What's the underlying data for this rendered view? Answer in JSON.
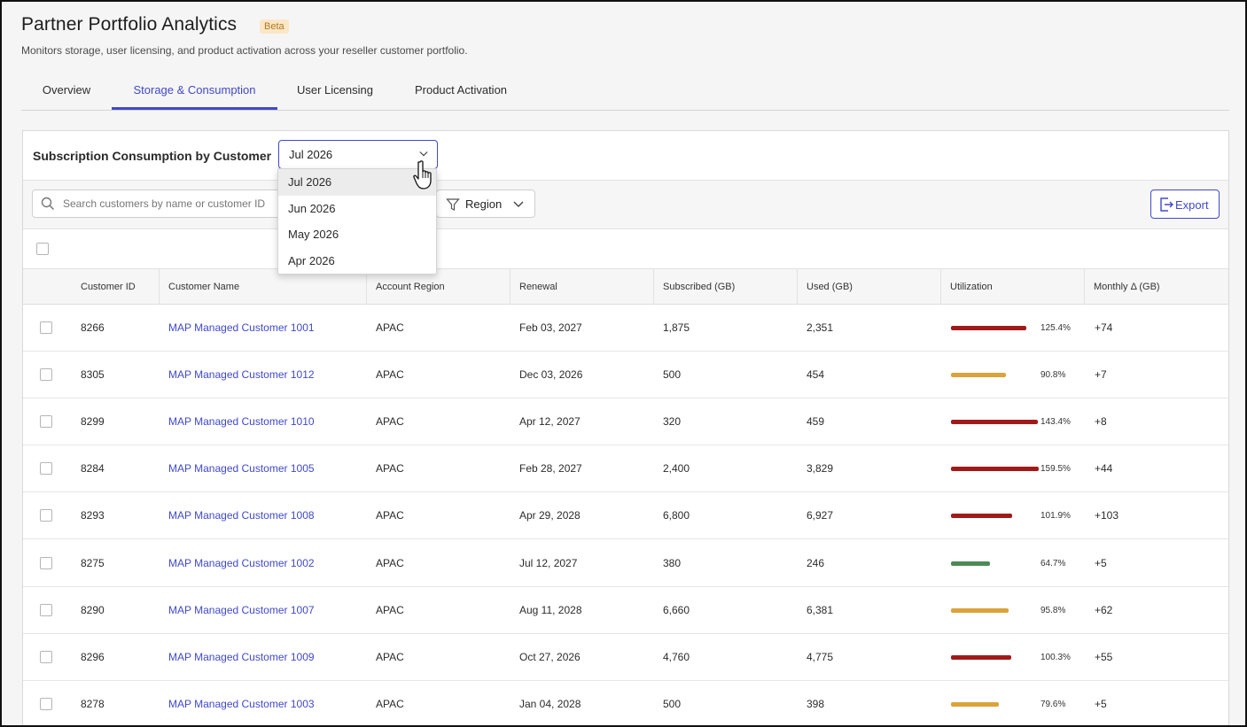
{
  "header": {
    "title": "Partner Portfolio Analytics",
    "badge": "Beta",
    "subtitle": "Monitors storage, user licensing, and product activation across your reseller customer portfolio."
  },
  "tabs": [
    {
      "label": "Overview",
      "active": false
    },
    {
      "label": "Storage & Consumption",
      "active": true
    },
    {
      "label": "User Licensing",
      "active": false
    },
    {
      "label": "Product Activation",
      "active": false
    }
  ],
  "panel": {
    "title": "Subscription Consumption by Customer",
    "month_select": {
      "value": "Jul 2026",
      "options": [
        "Jul 2026",
        "Jun 2026",
        "May 2026",
        "Apr 2026"
      ]
    },
    "search": {
      "placeholder": "Search customers by name or customer ID",
      "value": ""
    },
    "region_label": "Region",
    "export_label": "Export"
  },
  "table": {
    "columns": [
      "Customer ID",
      "Customer Name",
      "Account Region",
      "Renewal",
      "Subscribed (GB)",
      "Used (GB)",
      "Utilization",
      "Monthly Δ (GB)"
    ],
    "rows": [
      {
        "id": "8266",
        "name": "MAP Managed Customer 1001",
        "region": "APAC",
        "renewal": "Feb 03, 2027",
        "subscribed": "1,875",
        "used": "2,351",
        "utilization": "125.4%",
        "util_value": 125.4,
        "util_color": "#a11a1a",
        "delta": "+74"
      },
      {
        "id": "8305",
        "name": "MAP Managed Customer 1012",
        "region": "APAC",
        "renewal": "Dec 03, 2026",
        "subscribed": "500",
        "used": "454",
        "utilization": "90.8%",
        "util_value": 90.8,
        "util_color": "#dba33a",
        "delta": "+7"
      },
      {
        "id": "8299",
        "name": "MAP Managed Customer 1010",
        "region": "APAC",
        "renewal": "Apr 12, 2027",
        "subscribed": "320",
        "used": "459",
        "utilization": "143.4%",
        "util_value": 143.4,
        "util_color": "#a11a1a",
        "delta": "+8"
      },
      {
        "id": "8284",
        "name": "MAP Managed Customer 1005",
        "region": "APAC",
        "renewal": "Feb 28, 2027",
        "subscribed": "2,400",
        "used": "3,829",
        "utilization": "159.5%",
        "util_value": 159.5,
        "util_color": "#a11a1a",
        "delta": "+44"
      },
      {
        "id": "8293",
        "name": "MAP Managed Customer 1008",
        "region": "APAC",
        "renewal": "Apr 29, 2028",
        "subscribed": "6,800",
        "used": "6,927",
        "utilization": "101.9%",
        "util_value": 101.9,
        "util_color": "#a11a1a",
        "delta": "+103"
      },
      {
        "id": "8275",
        "name": "MAP Managed Customer 1002",
        "region": "APAC",
        "renewal": "Jul 12, 2027",
        "subscribed": "380",
        "used": "246",
        "utilization": "64.7%",
        "util_value": 64.7,
        "util_color": "#4d8a55",
        "delta": "+5"
      },
      {
        "id": "8290",
        "name": "MAP Managed Customer 1007",
        "region": "APAC",
        "renewal": "Aug 11, 2028",
        "subscribed": "6,660",
        "used": "6,381",
        "utilization": "95.8%",
        "util_value": 95.8,
        "util_color": "#dba33a",
        "delta": "+62"
      },
      {
        "id": "8296",
        "name": "MAP Managed Customer 1009",
        "region": "APAC",
        "renewal": "Oct 27, 2026",
        "subscribed": "4,760",
        "used": "4,775",
        "utilization": "100.3%",
        "util_value": 100.3,
        "util_color": "#a11a1a",
        "delta": "+55"
      },
      {
        "id": "8278",
        "name": "MAP Managed Customer 1003",
        "region": "APAC",
        "renewal": "Jan 04, 2028",
        "subscribed": "500",
        "used": "398",
        "utilization": "79.6%",
        "util_value": 79.6,
        "util_color": "#dba33a",
        "delta": "+5"
      }
    ]
  },
  "colors": {
    "accent": "#4049c9",
    "over": "#a11a1a",
    "warn": "#dba33a",
    "ok": "#4d8a55"
  }
}
